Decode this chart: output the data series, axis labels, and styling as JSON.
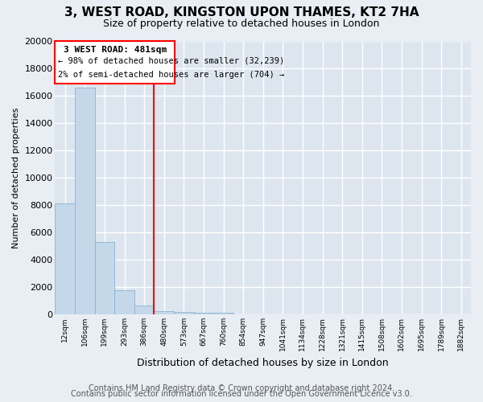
{
  "title": "3, WEST ROAD, KINGSTON UPON THAMES, KT2 7HA",
  "subtitle": "Size of property relative to detached houses in London",
  "xlabel": "Distribution of detached houses by size in London",
  "ylabel": "Number of detached properties",
  "bar_color": "#c5d8ea",
  "bar_edge_color": "#89b4d1",
  "categories": [
    "12sqm",
    "106sqm",
    "199sqm",
    "293sqm",
    "386sqm",
    "480sqm",
    "573sqm",
    "667sqm",
    "760sqm",
    "854sqm",
    "947sqm",
    "1041sqm",
    "1134sqm",
    "1228sqm",
    "1321sqm",
    "1415sqm",
    "1508sqm",
    "1602sqm",
    "1695sqm",
    "1789sqm",
    "1882sqm"
  ],
  "values": [
    8150,
    16600,
    5300,
    1800,
    650,
    270,
    200,
    155,
    120,
    0,
    0,
    0,
    0,
    0,
    0,
    0,
    0,
    0,
    0,
    0,
    0
  ],
  "ylim": [
    0,
    20000
  ],
  "yticks": [
    0,
    2000,
    4000,
    6000,
    8000,
    10000,
    12000,
    14000,
    16000,
    18000,
    20000
  ],
  "vline_index": 5,
  "annotation_title": "3 WEST ROAD: 481sqm",
  "annotation_line1": "← 98% of detached houses are smaller (32,239)",
  "annotation_line2": "2% of semi-detached houses are larger (704) →",
  "footer_line1": "Contains HM Land Registry data © Crown copyright and database right 2024.",
  "footer_line2": "Contains public sector information licensed under the Open Government Licence v3.0.",
  "background_color": "#e8eef4",
  "plot_bg_color": "#dde6ef",
  "grid_color": "white",
  "title_fontsize": 11,
  "subtitle_fontsize": 9,
  "ylabel_fontsize": 8,
  "xlabel_fontsize": 9,
  "tick_fontsize": 8,
  "footer_fontsize": 7
}
